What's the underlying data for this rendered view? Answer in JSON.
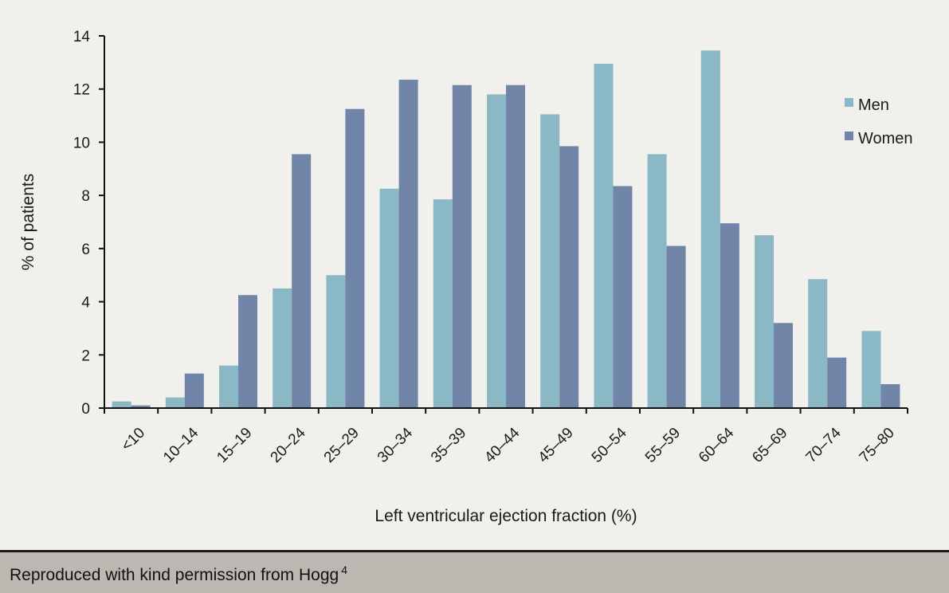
{
  "chart_data": {
    "type": "bar",
    "categories": [
      "<10",
      "10–14",
      "15–19",
      "20–24",
      "25–29",
      "30–34",
      "35–39",
      "40–44",
      "45–49",
      "50–54",
      "55–59",
      "60–64",
      "65–69",
      "70–74",
      "75–80"
    ],
    "series": [
      {
        "name": "Men",
        "color": "#8ab8c4",
        "values": [
          0.25,
          0.4,
          1.6,
          4.5,
          5.0,
          8.25,
          7.85,
          11.8,
          11.05,
          12.95,
          9.55,
          13.45,
          6.5,
          4.85,
          2.9
        ]
      },
      {
        "name": "Women",
        "color": "#7185a8",
        "values": [
          0.1,
          1.3,
          4.25,
          9.55,
          11.25,
          12.35,
          12.15,
          12.15,
          9.85,
          8.35,
          6.1,
          6.95,
          3.2,
          1.9,
          0.9
        ]
      }
    ],
    "xlabel": "Left ventricular ejection fraction (%)",
    "ylabel": "% of patients",
    "ylim": [
      0,
      14
    ],
    "yticks": [
      0,
      2,
      4,
      6,
      8,
      10,
      12,
      14
    ],
    "grid": false,
    "legend_position": "right"
  },
  "footer": {
    "text": "Reproduced with kind permission from Hogg",
    "superscript": "4"
  }
}
